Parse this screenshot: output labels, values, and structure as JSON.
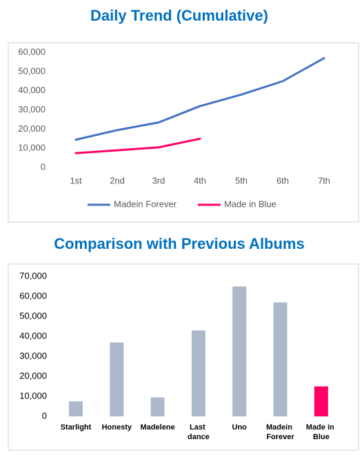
{
  "chart_data": [
    {
      "type": "line",
      "title": "Daily Trend (Cumulative)",
      "categories": [
        "1st",
        "2nd",
        "3rd",
        "4th",
        "5th",
        "6th",
        "7th"
      ],
      "series": [
        {
          "name": "Madein Forever",
          "color": "#4472c4",
          "values": [
            14500,
            19500,
            23500,
            32000,
            38000,
            45000,
            57000
          ]
        },
        {
          "name": "Made in Blue",
          "color": "#ff0066",
          "values": [
            7500,
            9000,
            10500,
            15000,
            null,
            null,
            null
          ]
        }
      ],
      "ylim": [
        0,
        60000
      ],
      "yticks": [
        0,
        {
          "value": 10000,
          "label": "10,000"
        },
        {
          "value": 20000,
          "label": "20,000"
        },
        {
          "value": 30000,
          "label": "30,000"
        },
        {
          "value": 40000,
          "label": "40,000"
        },
        {
          "value": 50000,
          "label": "50,000"
        },
        {
          "value": 60000,
          "label": "60,000"
        }
      ],
      "legend": "bottom"
    },
    {
      "type": "bar",
      "title": "Comparison with Previous Albums",
      "categories": [
        "Starlight",
        "Honesty",
        "Madelene",
        "Last dance",
        "Uno",
        "Madein Forever",
        "Made in Blue"
      ],
      "values": [
        7500,
        37000,
        9500,
        43000,
        65000,
        57000,
        15000
      ],
      "colors": [
        "#adb9ca",
        "#adb9ca",
        "#adb9ca",
        "#adb9ca",
        "#adb9ca",
        "#adb9ca",
        "#ff0066"
      ],
      "ylim": [
        0,
        70000
      ],
      "yticks": [
        0,
        {
          "value": 10000,
          "label": "10,000"
        },
        {
          "value": 20000,
          "label": "20,000"
        },
        {
          "value": 30000,
          "label": "30,000"
        },
        {
          "value": 40000,
          "label": "40,000"
        },
        {
          "value": 50000,
          "label": "50,000"
        },
        {
          "value": 60000,
          "label": "60,000"
        },
        {
          "value": 70000,
          "label": "70,000"
        }
      ]
    }
  ]
}
